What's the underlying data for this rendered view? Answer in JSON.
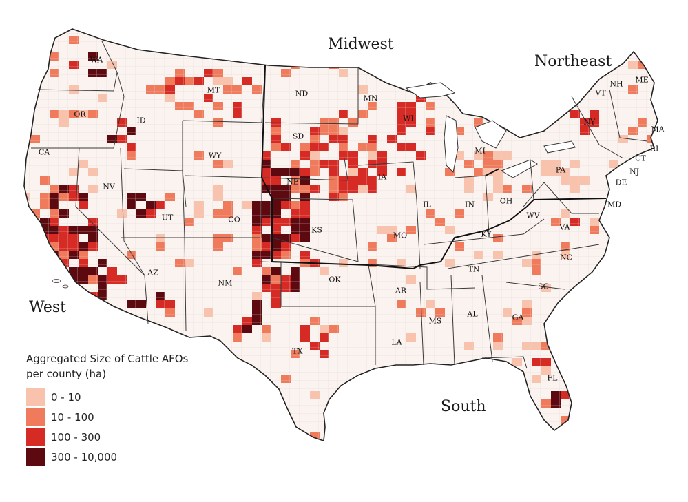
{
  "map": {
    "regions": [
      {
        "id": "midwest",
        "label": "Midwest"
      },
      {
        "id": "northeast",
        "label": "Northeast"
      },
      {
        "id": "west",
        "label": "West"
      },
      {
        "id": "south",
        "label": "South"
      }
    ],
    "states": [
      "WA",
      "OR",
      "CA",
      "ID",
      "NV",
      "MT",
      "WY",
      "UT",
      "AZ",
      "CO",
      "NM",
      "ND",
      "SD",
      "NE",
      "KS",
      "OK",
      "TX",
      "MN",
      "IA",
      "MO",
      "AR",
      "LA",
      "WI",
      "IL",
      "MI",
      "IN",
      "OH",
      "KY",
      "TN",
      "MS",
      "AL",
      "GA",
      "FL",
      "SC",
      "NC",
      "VA",
      "WV",
      "PA",
      "NY",
      "VT",
      "NH",
      "ME",
      "MA",
      "RI",
      "CT",
      "NJ",
      "DE",
      "MD"
    ],
    "colors": {
      "background": "#ffffff",
      "land": "#fbf3ef",
      "county_border": "#d9d4d0",
      "state_border": "#3a3a3a",
      "region_border": "#111111",
      "class_1": "#f9c2ad",
      "class_2": "#f07a5c",
      "class_3": "#d62a25",
      "class_4": "#5c0910"
    }
  },
  "legend": {
    "title": "Aggregated Size of Cattle AFOs\nper county (ha)",
    "items": [
      {
        "label": "0 - 10",
        "color": "#f9c2ad"
      },
      {
        "label": "10 - 100",
        "color": "#f07a5c"
      },
      {
        "label": "100 - 300",
        "color": "#d62a25"
      },
      {
        "label": "300 - 10,000",
        "color": "#5c0910"
      }
    ]
  }
}
